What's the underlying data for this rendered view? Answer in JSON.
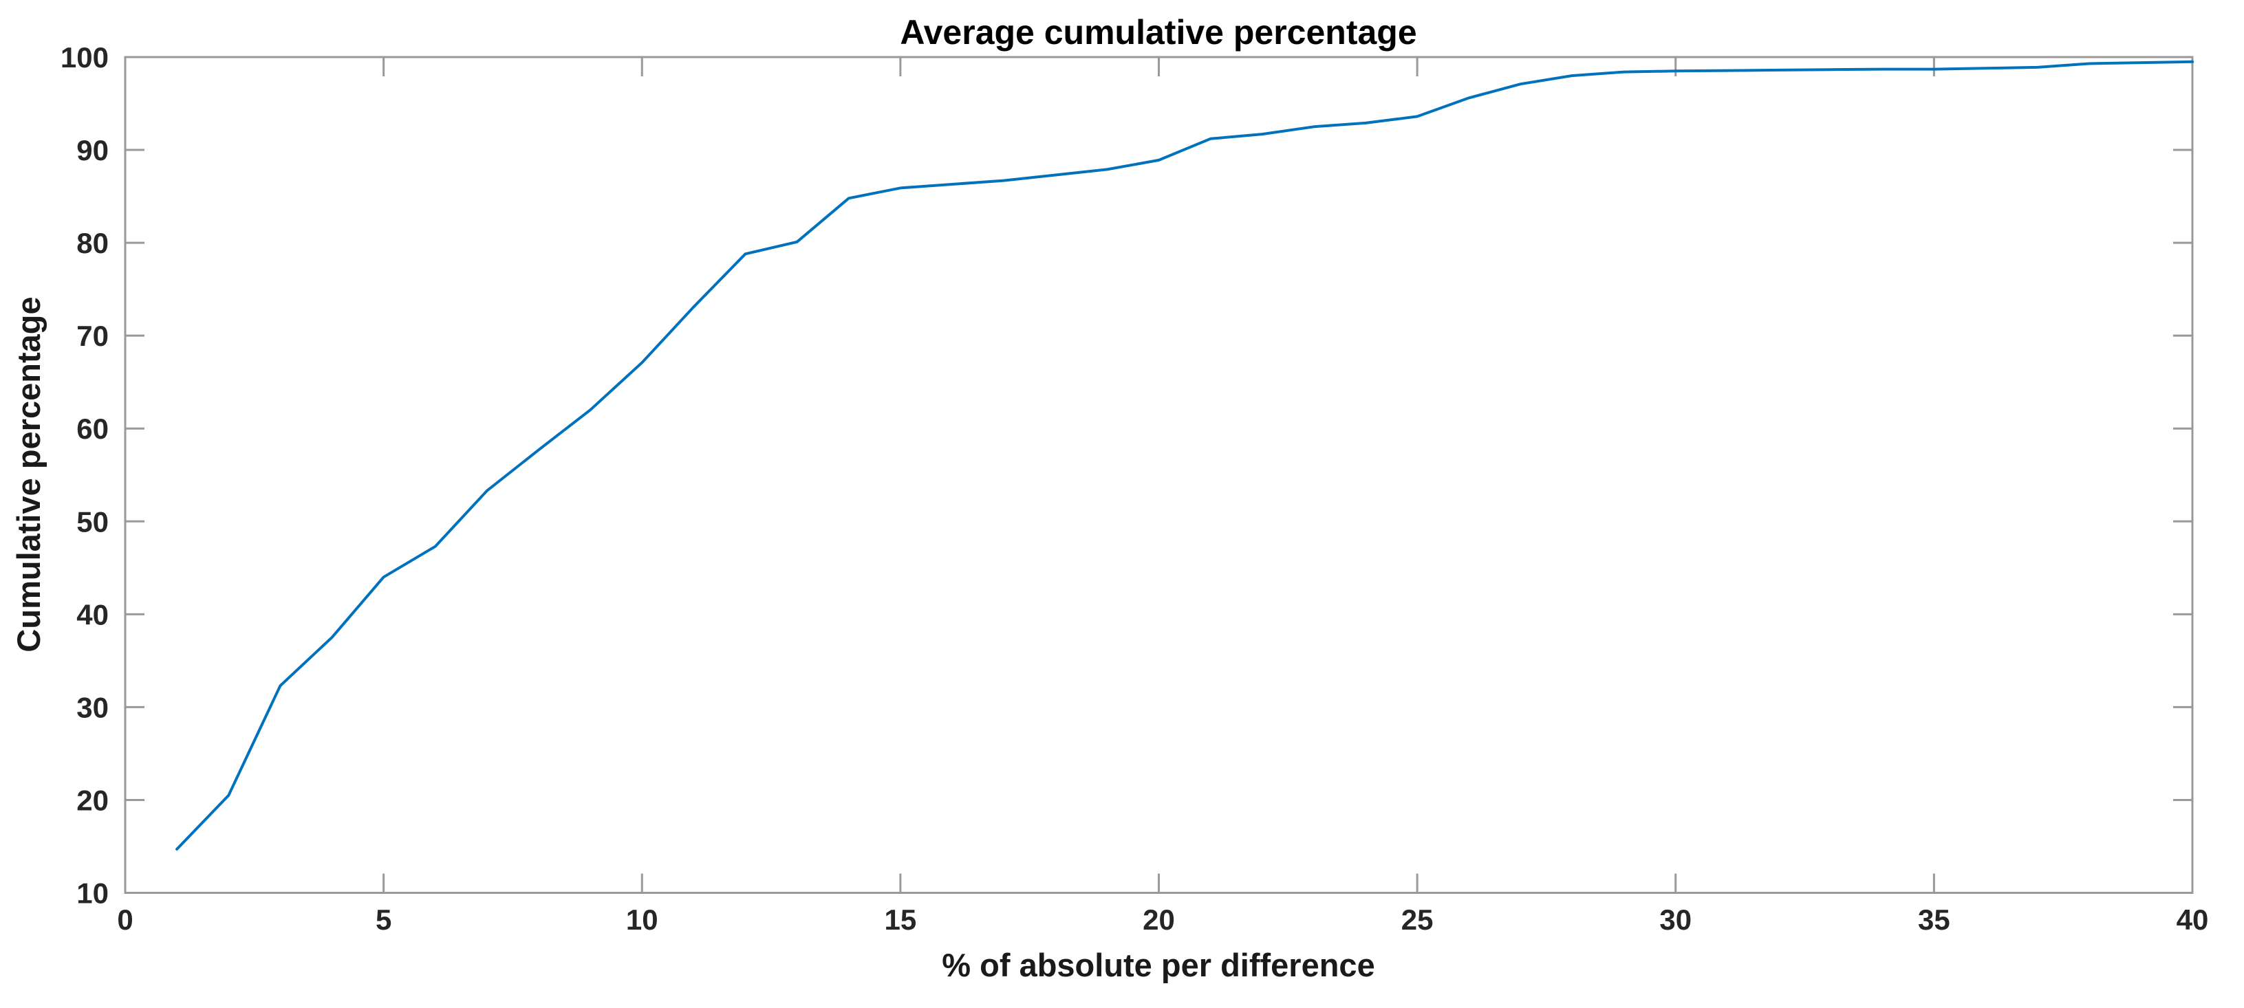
{
  "chart_data": {
    "type": "line",
    "title": "Average cumulative percentage",
    "xlabel": "% of absolute per difference",
    "ylabel": "Cumulative percentage",
    "xlim": [
      0,
      40
    ],
    "ylim": [
      10,
      100
    ],
    "x_ticks": [
      0,
      5,
      10,
      15,
      20,
      25,
      30,
      35,
      40
    ],
    "y_ticks": [
      10,
      20,
      30,
      40,
      50,
      60,
      70,
      80,
      90,
      100
    ],
    "grid": false,
    "legend": "none",
    "box": true,
    "tick_direction": "in",
    "line_color": "#0072BD",
    "axis_color": "#999999",
    "tick_label_color": "#262626",
    "series": [
      {
        "name": "Average cumulative percentage",
        "x": [
          1,
          2,
          3,
          4,
          5,
          6,
          7,
          8,
          9,
          10,
          11,
          12,
          13,
          14,
          15,
          16,
          17,
          18,
          19,
          20,
          21,
          22,
          23,
          24,
          25,
          26,
          27,
          28,
          29,
          30,
          31,
          32,
          33,
          34,
          35,
          36,
          37,
          38,
          39,
          40
        ],
        "y": [
          14.7,
          20.5,
          32.3,
          37.5,
          44.0,
          47.3,
          53.3,
          57.7,
          62.0,
          67.1,
          73.1,
          78.8,
          80.1,
          84.8,
          85.9,
          86.3,
          86.7,
          87.3,
          87.9,
          88.9,
          91.2,
          91.7,
          92.5,
          92.9,
          93.6,
          95.6,
          97.1,
          98.0,
          98.4,
          98.5,
          98.55,
          98.6,
          98.65,
          98.7,
          98.7,
          98.8,
          98.9,
          99.3,
          99.4,
          99.5
        ]
      }
    ]
  }
}
